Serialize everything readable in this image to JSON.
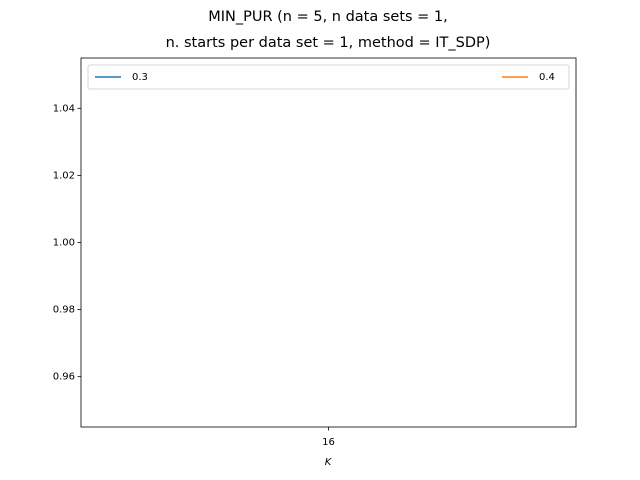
{
  "chart_data": {
    "type": "line",
    "title": [
      "MIN_PUR (n = 5, n data sets = 1,",
      "n. starts per data set = 1, method = IT_SDP)"
    ],
    "x_label": "K",
    "x": [
      16
    ],
    "series": [
      {
        "name": "0.3",
        "color": "#1f77b4",
        "values": [
          1
        ]
      },
      {
        "name": "0.4",
        "color": "#ff7f0e",
        "values": [
          1
        ]
      }
    ],
    "xlim": [
      15.945,
      16.055
    ],
    "xticks": [
      16
    ],
    "ylim": [
      0.945,
      1.055
    ],
    "yticks": [
      0.96,
      0.98,
      {
        "value": 1.0,
        "label": "1.00"
      },
      1.02,
      1.04
    ],
    "legend": "upper",
    "grid": false
  }
}
